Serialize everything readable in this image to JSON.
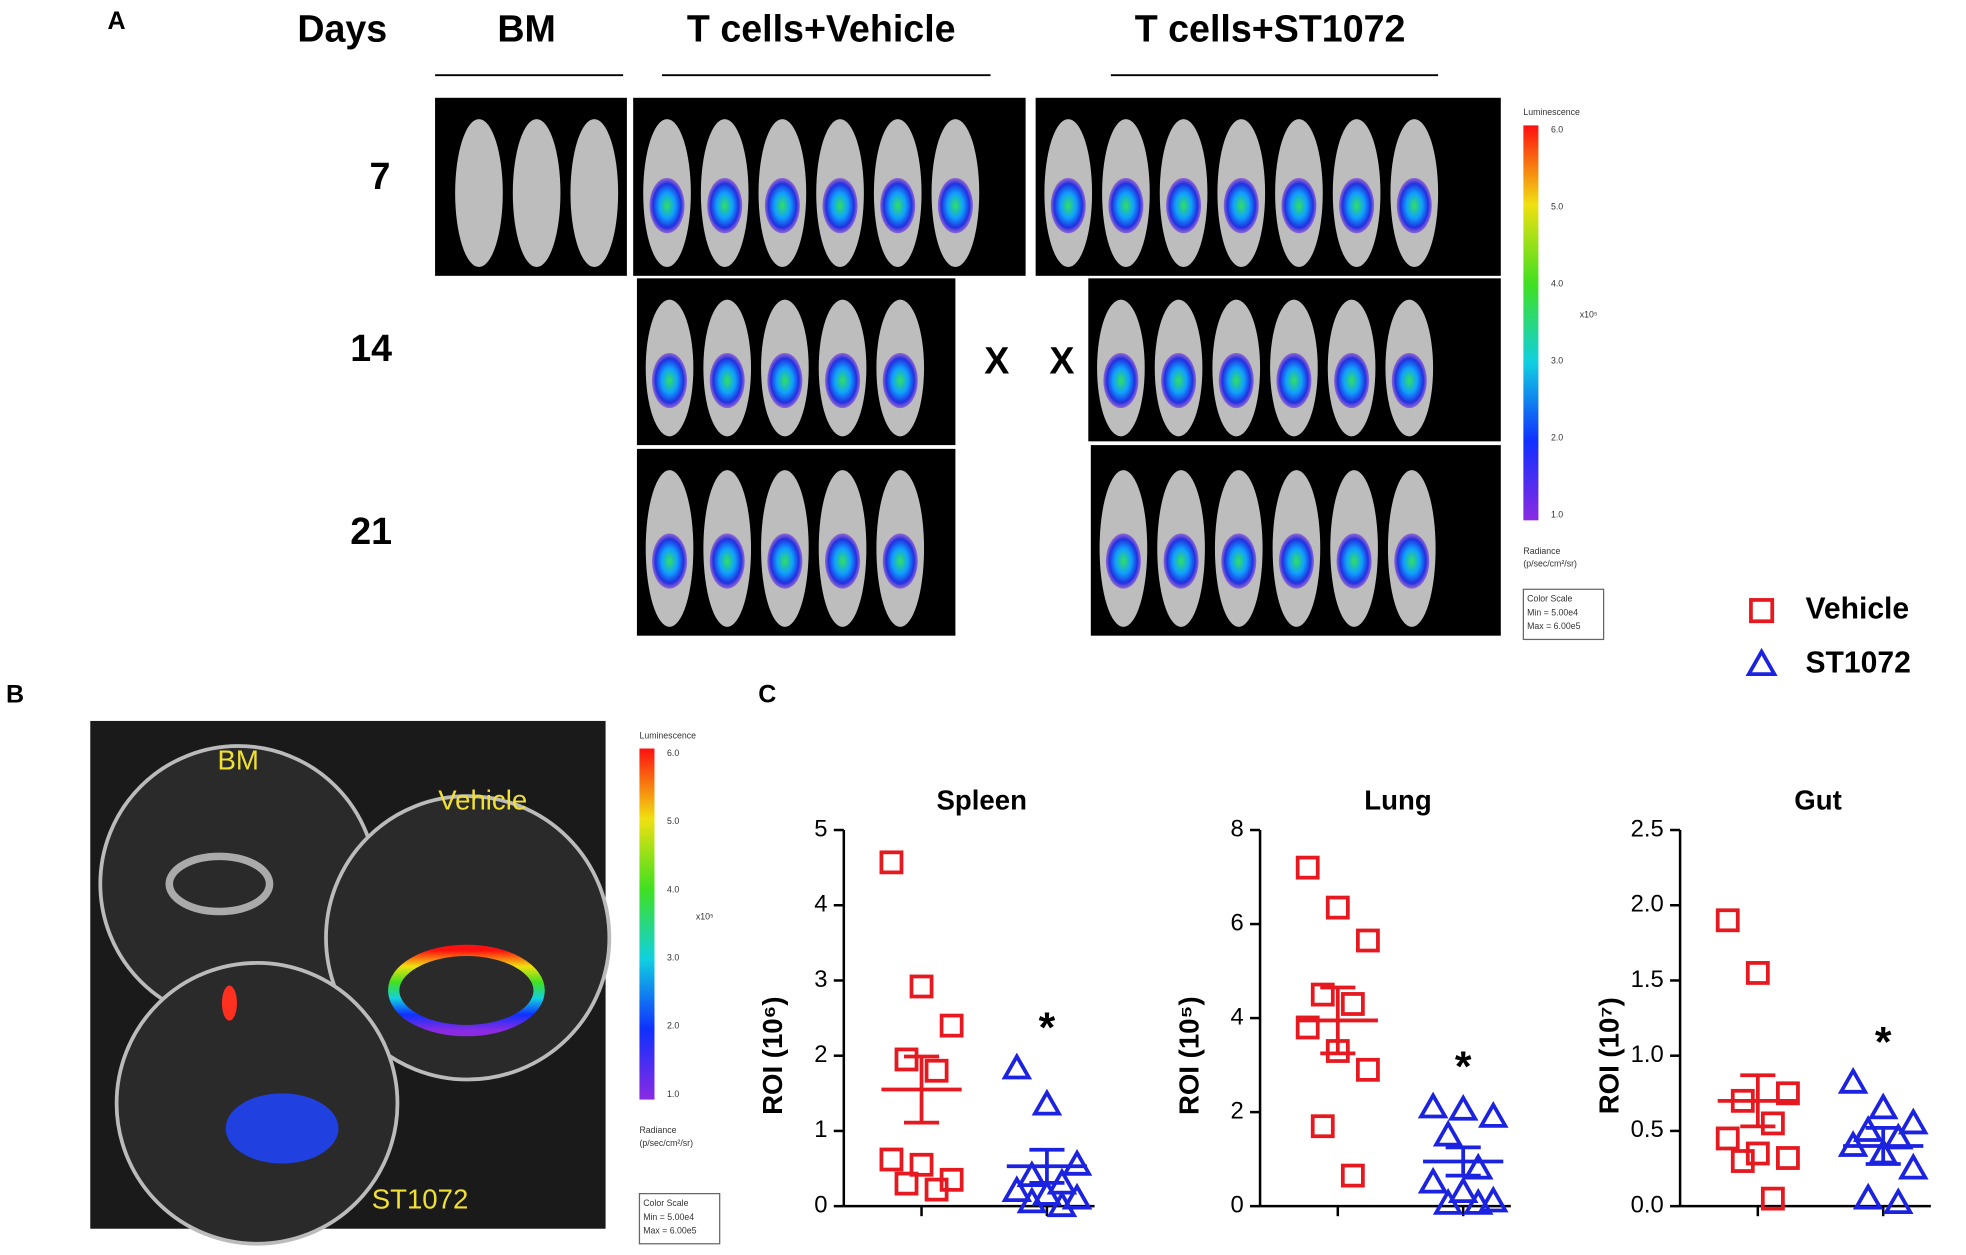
{
  "panel_labels": [
    "A",
    "B",
    "C"
  ],
  "panel_a": {
    "row_header": "Days",
    "groups": [
      "BM",
      "T cells+Vehicle",
      "T cells+ST1072"
    ],
    "days": [
      "7",
      "14",
      "21"
    ],
    "missing_marks": [
      "X",
      "X"
    ]
  },
  "color_scale": {
    "title": "Luminescence",
    "ticks": [
      "6.0",
      "5.0",
      "4.0",
      "3.0",
      "2.0",
      "1.0"
    ],
    "multiplier": "x10⁵",
    "unit_lines": [
      "Radiance",
      "(p/sec/cm²/sr)"
    ],
    "box_lines": [
      "Color Scale",
      "Min = 5.00e4",
      "Max = 6.00e5"
    ]
  },
  "panel_b": {
    "dish_labels": [
      "BM",
      "Vehicle",
      "ST1072"
    ]
  },
  "legend": [
    {
      "name": "Vehicle",
      "color": "#e5191f",
      "marker": "square"
    },
    {
      "name": "ST1072",
      "color": "#1b22e0",
      "marker": "triangle"
    }
  ],
  "chart_data": [
    {
      "type": "scatter",
      "title": "Spleen",
      "ylabel": "ROI (10⁶)",
      "ylim": [
        0,
        5
      ],
      "yticks": [
        0,
        1,
        2,
        3,
        4,
        5
      ],
      "annotation": "*",
      "series": [
        {
          "name": "Vehicle",
          "color": "#e5191f",
          "marker": "square",
          "values": [
            4.57,
            2.92,
            2.4,
            1.95,
            1.8,
            0.62,
            0.55,
            0.35,
            0.3,
            0.22
          ],
          "mean": 1.55,
          "error": 0.44
        },
        {
          "name": "ST1072",
          "color": "#1b22e0",
          "marker": "triangle",
          "values": [
            1.83,
            1.35,
            0.55,
            0.4,
            0.3,
            0.2,
            0.15,
            0.1,
            0.05,
            0.0
          ],
          "mean": 0.53,
          "error": 0.22
        }
      ]
    },
    {
      "type": "scatter",
      "title": "Lung",
      "ylabel": "ROI (10⁵)",
      "ylim": [
        0,
        8
      ],
      "yticks": [
        0,
        2,
        4,
        6,
        8
      ],
      "annotation": "*",
      "series": [
        {
          "name": "Vehicle",
          "color": "#e5191f",
          "marker": "square",
          "values": [
            7.2,
            6.35,
            5.65,
            4.5,
            4.3,
            3.8,
            3.3,
            2.9,
            1.7,
            0.65
          ],
          "mean": 3.95,
          "error": 0.7
        },
        {
          "name": "ST1072",
          "color": "#1b22e0",
          "marker": "triangle",
          "values": [
            2.1,
            2.05,
            1.9,
            1.5,
            0.8,
            0.5,
            0.3,
            0.1,
            0.05,
            0.05
          ],
          "mean": 0.95,
          "error": 0.3
        }
      ]
    },
    {
      "type": "scatter",
      "title": "Gut",
      "ylabel": "ROI (10⁷)",
      "ylim": [
        0,
        2.5
      ],
      "yticks": [
        {
          "value": 0,
          "label": "0.0"
        },
        {
          "value": 0.5,
          "label": "0.5"
        },
        {
          "value": 1,
          "label": "1.0"
        },
        {
          "value": 1.5,
          "label": "1.5"
        },
        {
          "value": 2,
          "label": "2.0"
        },
        {
          "value": 2.5,
          "label": "2.5"
        }
      ],
      "annotation": "*",
      "series": [
        {
          "name": "Vehicle",
          "color": "#e5191f",
          "marker": "square",
          "values": [
            1.9,
            1.55,
            0.75,
            0.7,
            0.55,
            0.45,
            0.35,
            0.32,
            0.3,
            0.05
          ],
          "mean": 0.7,
          "error": 0.17
        },
        {
          "name": "ST1072",
          "color": "#1b22e0",
          "marker": "triangle",
          "values": [
            0.82,
            0.65,
            0.55,
            0.5,
            0.45,
            0.4,
            0.35,
            0.25,
            0.05,
            0.02
          ],
          "mean": 0.4,
          "error": 0.12
        }
      ]
    }
  ]
}
